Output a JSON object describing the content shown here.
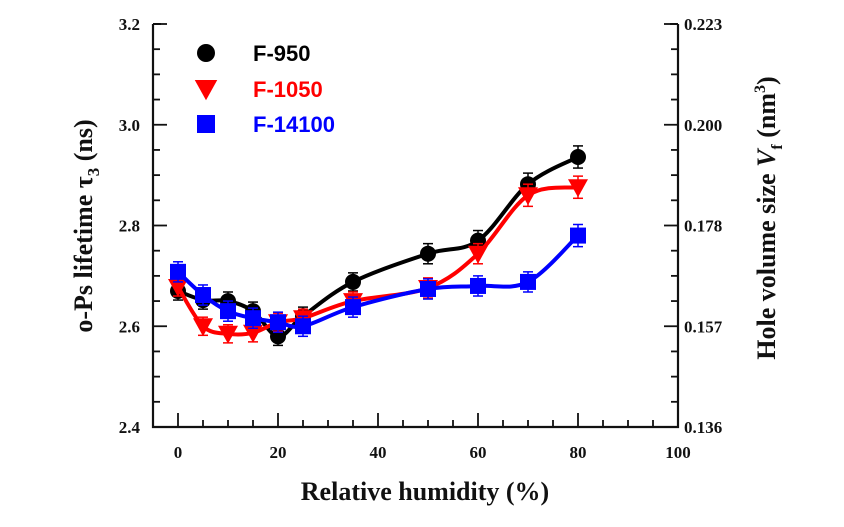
{
  "chart_data": {
    "type": "line",
    "title": "",
    "xlabel": "Relative humidity (%)",
    "ylabel": "o-Ps lifetime τ3 (ns)",
    "ylabel_parts": {
      "main": "o-Ps lifetime τ",
      "sub": "3",
      "unit": " (ns)"
    },
    "y2label": "Hole volume size Vf (nm3)",
    "y2label_parts": {
      "main": "Hole volume size ",
      "var": "V",
      "sub": "f",
      "unit_open": " (nm",
      "sup": "3",
      "unit_close": ")"
    },
    "xlim": [
      0,
      100
    ],
    "ylim": [
      2.4,
      3.2
    ],
    "y2lim": [
      0.136,
      0.223
    ],
    "x_ticks": [
      0,
      20,
      40,
      60,
      80,
      100
    ],
    "x_tick_labels": [
      "0",
      "20",
      "40",
      "60",
      "80",
      "100"
    ],
    "y_ticks": [
      2.4,
      2.6,
      2.8,
      3.0,
      3.2
    ],
    "y_tick_labels": [
      "2.4",
      "2.6",
      "2.8",
      "3.0",
      "3.2"
    ],
    "y2_ticks": [
      0.136,
      0.157,
      0.178,
      0.2,
      0.223
    ],
    "y2_tick_labels": [
      "0.136",
      "0.157",
      "0.178",
      "0.200",
      "0.223"
    ],
    "grid": false,
    "legend_position": "top-left",
    "x": [
      0,
      5,
      10,
      15,
      20,
      25,
      35,
      50,
      60,
      70,
      80
    ],
    "series": [
      {
        "name": "F-950",
        "color": "#000000",
        "marker": "circle",
        "values": [
          2.67,
          2.652,
          2.65,
          2.63,
          2.58,
          2.62,
          2.688,
          2.744,
          2.77,
          2.882,
          2.936
        ],
        "error": [
          0.018,
          0.018,
          0.018,
          0.018,
          0.018,
          0.018,
          0.018,
          0.02,
          0.02,
          0.022,
          0.022
        ]
      },
      {
        "name": "F-1050",
        "color": "#ff0000",
        "marker": "triangle-down",
        "values": [
          2.678,
          2.6,
          2.585,
          2.587,
          2.608,
          2.616,
          2.65,
          2.676,
          2.744,
          2.86,
          2.876
        ],
        "error": [
          0.018,
          0.018,
          0.018,
          0.018,
          0.018,
          0.018,
          0.018,
          0.02,
          0.02,
          0.022,
          0.022
        ]
      },
      {
        "name": "F-14100",
        "color": "#0000ff",
        "marker": "square",
        "values": [
          2.708,
          2.662,
          2.63,
          2.616,
          2.608,
          2.6,
          2.638,
          2.674,
          2.68,
          2.688,
          2.78
        ],
        "error": [
          0.02,
          0.02,
          0.02,
          0.02,
          0.02,
          0.02,
          0.02,
          0.02,
          0.02,
          0.02,
          0.022
        ]
      }
    ]
  }
}
